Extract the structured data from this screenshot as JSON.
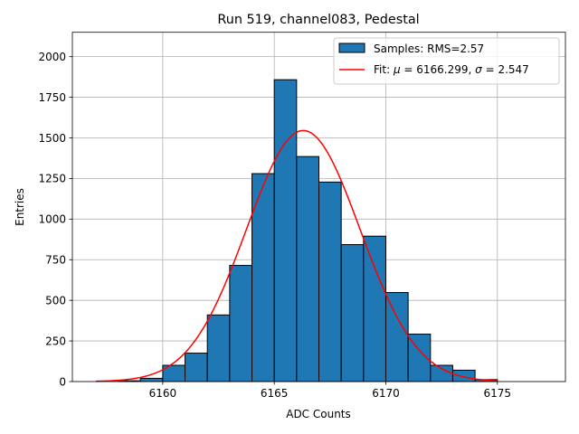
{
  "chart_data": {
    "type": "bar",
    "title": "Run 519, channel083, Pedestal",
    "xlabel": "ADC Counts",
    "ylabel": "Entries",
    "xlim": [
      6155.95,
      6178.05
    ],
    "ylim": [
      0,
      2150
    ],
    "grid": true,
    "legend_position": "top-right",
    "x_ticks": [
      6160,
      6165,
      6170,
      6175
    ],
    "y_ticks": [
      0,
      250,
      500,
      750,
      1000,
      1250,
      1500,
      1750,
      2000
    ],
    "bin_width": 1,
    "series": [
      {
        "name": "Samples: RMS=2.57",
        "kind": "histogram",
        "color": "#1f77b4",
        "edge_color": "#000000",
        "bins": [
          {
            "x0": 6158,
            "x1": 6159,
            "y": 5
          },
          {
            "x0": 6159,
            "x1": 6160,
            "y": 20
          },
          {
            "x0": 6160,
            "x1": 6161,
            "y": 100
          },
          {
            "x0": 6161,
            "x1": 6162,
            "y": 175
          },
          {
            "x0": 6162,
            "x1": 6163,
            "y": 410
          },
          {
            "x0": 6163,
            "x1": 6164,
            "y": 715
          },
          {
            "x0": 6164,
            "x1": 6165,
            "y": 1280
          },
          {
            "x0": 6165,
            "x1": 6166,
            "y": 1858
          },
          {
            "x0": 6166,
            "x1": 6167,
            "y": 1385
          },
          {
            "x0": 6167,
            "x1": 6168,
            "y": 1228
          },
          {
            "x0": 6168,
            "x1": 6169,
            "y": 843
          },
          {
            "x0": 6169,
            "x1": 6170,
            "y": 895
          },
          {
            "x0": 6170,
            "x1": 6171,
            "y": 548
          },
          {
            "x0": 6171,
            "x1": 6172,
            "y": 292
          },
          {
            "x0": 6172,
            "x1": 6173,
            "y": 100
          },
          {
            "x0": 6173,
            "x1": 6174,
            "y": 70
          },
          {
            "x0": 6174,
            "x1": 6175,
            "y": 12
          }
        ]
      },
      {
        "name": "Fit: μ = 6166.299, σ = 2.547",
        "legend_prefix": "Fit: ",
        "legend_mu": "μ",
        "legend_mid": " = 6166.299, ",
        "legend_sigma": "σ",
        "legend_suffix": " = 2.547",
        "kind": "gaussian",
        "color": "#ff0000",
        "mu": 6166.299,
        "sigma": 2.547,
        "amplitude": 1545,
        "x_range": [
          6157,
          6175
        ]
      }
    ]
  }
}
